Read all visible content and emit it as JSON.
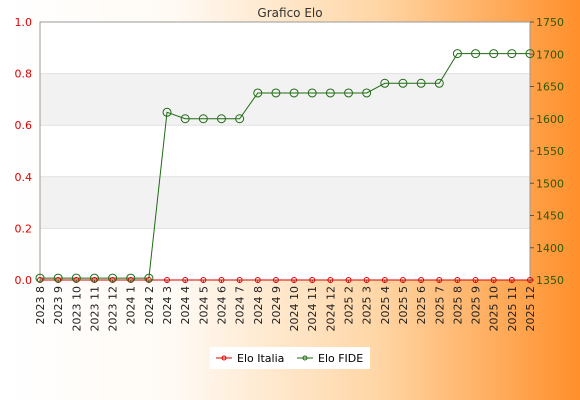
{
  "chart_data": {
    "type": "line",
    "title": "Grafico Elo",
    "categories": [
      "2023 8",
      "2023 9",
      "2023 10",
      "2023 11",
      "2023 12",
      "2024 1",
      "2024 2",
      "2024 3",
      "2024 4",
      "2024 5",
      "2024 6",
      "2024 7",
      "2024 8",
      "2024 9",
      "2024 10",
      "2024 11",
      "2024 12",
      "2025 2",
      "2025 3",
      "2025 4",
      "2025 5",
      "2025 6",
      "2025 7",
      "2025 8",
      "2025 9",
      "2025 10",
      "2025 11",
      "2025 12"
    ],
    "y_left": {
      "ticks": [
        "0.0",
        "0.2",
        "0.4",
        "0.6",
        "0.8",
        "1.0"
      ],
      "ylim": [
        0,
        1
      ],
      "color": "#dd0000"
    },
    "y_right": {
      "ticks": [
        "1350",
        "1400",
        "1450",
        "1500",
        "1550",
        "1600",
        "1650",
        "1700",
        "1750"
      ],
      "ylim": [
        1350,
        1750
      ],
      "color": "#2a5a00"
    },
    "series": [
      {
        "name": "Elo Italia",
        "axis": "left",
        "color": "#dd0000",
        "values": [
          0,
          0,
          0,
          0,
          0,
          0,
          0,
          0,
          0,
          0,
          0,
          0,
          0,
          0,
          0,
          0,
          0,
          0,
          0,
          0,
          0,
          0,
          0,
          0,
          0,
          0,
          0,
          0
        ]
      },
      {
        "name": "Elo FIDE",
        "axis": "right",
        "color": "#1e6b12",
        "values": [
          1353,
          1353,
          1353,
          1353,
          1353,
          1353,
          1353,
          1610,
          1600,
          1600,
          1600,
          1600,
          1640,
          1640,
          1640,
          1640,
          1640,
          1640,
          1640,
          1655,
          1655,
          1655,
          1655,
          1701,
          1701,
          1701,
          1701,
          1701
        ]
      }
    ],
    "grid": true,
    "legend": "bottom-center"
  }
}
